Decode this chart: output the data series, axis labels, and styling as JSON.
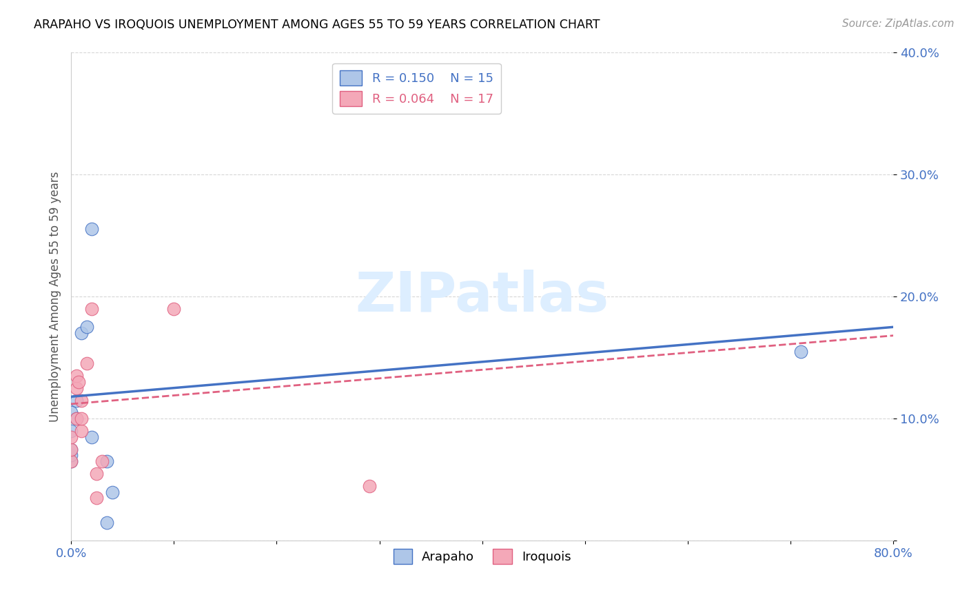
{
  "title": "ARAPAHO VS IROQUOIS UNEMPLOYMENT AMONG AGES 55 TO 59 YEARS CORRELATION CHART",
  "source": "Source: ZipAtlas.com",
  "ylabel": "Unemployment Among Ages 55 to 59 years",
  "xlim": [
    0,
    0.8
  ],
  "ylim": [
    0,
    0.4
  ],
  "xticks": [
    0.0,
    0.1,
    0.2,
    0.3,
    0.4,
    0.5,
    0.6,
    0.7,
    0.8
  ],
  "xticklabels": [
    "0.0%",
    "",
    "",
    "",
    "",
    "",
    "",
    "",
    "80.0%"
  ],
  "yticks": [
    0.0,
    0.1,
    0.2,
    0.3,
    0.4
  ],
  "yticklabels": [
    "",
    "10.0%",
    "20.0%",
    "30.0%",
    "40.0%"
  ],
  "arapaho_R": 0.15,
  "arapaho_N": 15,
  "iroquois_R": 0.064,
  "iroquois_N": 17,
  "arapaho_color": "#aec6e8",
  "iroquois_color": "#f4a8b8",
  "arapaho_line_color": "#4472c4",
  "iroquois_line_color": "#e06080",
  "watermark_color": "#ddeeff",
  "arapaho_x": [
    0.0,
    0.0,
    0.0,
    0.0,
    0.0,
    0.005,
    0.005,
    0.01,
    0.015,
    0.02,
    0.02,
    0.035,
    0.035,
    0.04,
    0.71
  ],
  "arapaho_y": [
    0.065,
    0.07,
    0.075,
    0.09,
    0.105,
    0.1,
    0.115,
    0.17,
    0.175,
    0.085,
    0.255,
    0.065,
    0.015,
    0.04,
    0.155
  ],
  "iroquois_x": [
    0.0,
    0.0,
    0.0,
    0.005,
    0.005,
    0.005,
    0.007,
    0.01,
    0.01,
    0.01,
    0.015,
    0.02,
    0.025,
    0.025,
    0.03,
    0.1,
    0.29
  ],
  "iroquois_y": [
    0.065,
    0.075,
    0.085,
    0.1,
    0.125,
    0.135,
    0.13,
    0.09,
    0.1,
    0.115,
    0.145,
    0.19,
    0.035,
    0.055,
    0.065,
    0.19,
    0.045
  ],
  "arapaho_line_y0": 0.118,
  "arapaho_line_y1": 0.175,
  "iroquois_line_y0": 0.112,
  "iroquois_line_y1": 0.168
}
